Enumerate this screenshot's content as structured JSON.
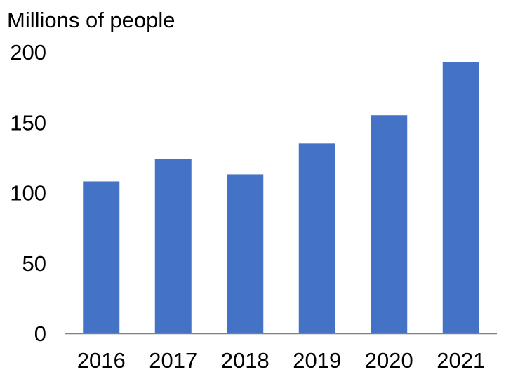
{
  "chart_data": {
    "type": "bar",
    "title": "",
    "xlabel": "",
    "ylabel": "Millions of people",
    "categories": [
      "2016",
      "2017",
      "2018",
      "2019",
      "2020",
      "2021"
    ],
    "values": [
      108,
      124,
      113,
      135,
      155,
      193
    ],
    "ylim": [
      0,
      200
    ],
    "yticks": [
      0,
      50,
      100,
      150,
      200
    ],
    "grid": false,
    "legend": "none",
    "bar_color": "#4472C4",
    "axis_color": "#808080"
  }
}
